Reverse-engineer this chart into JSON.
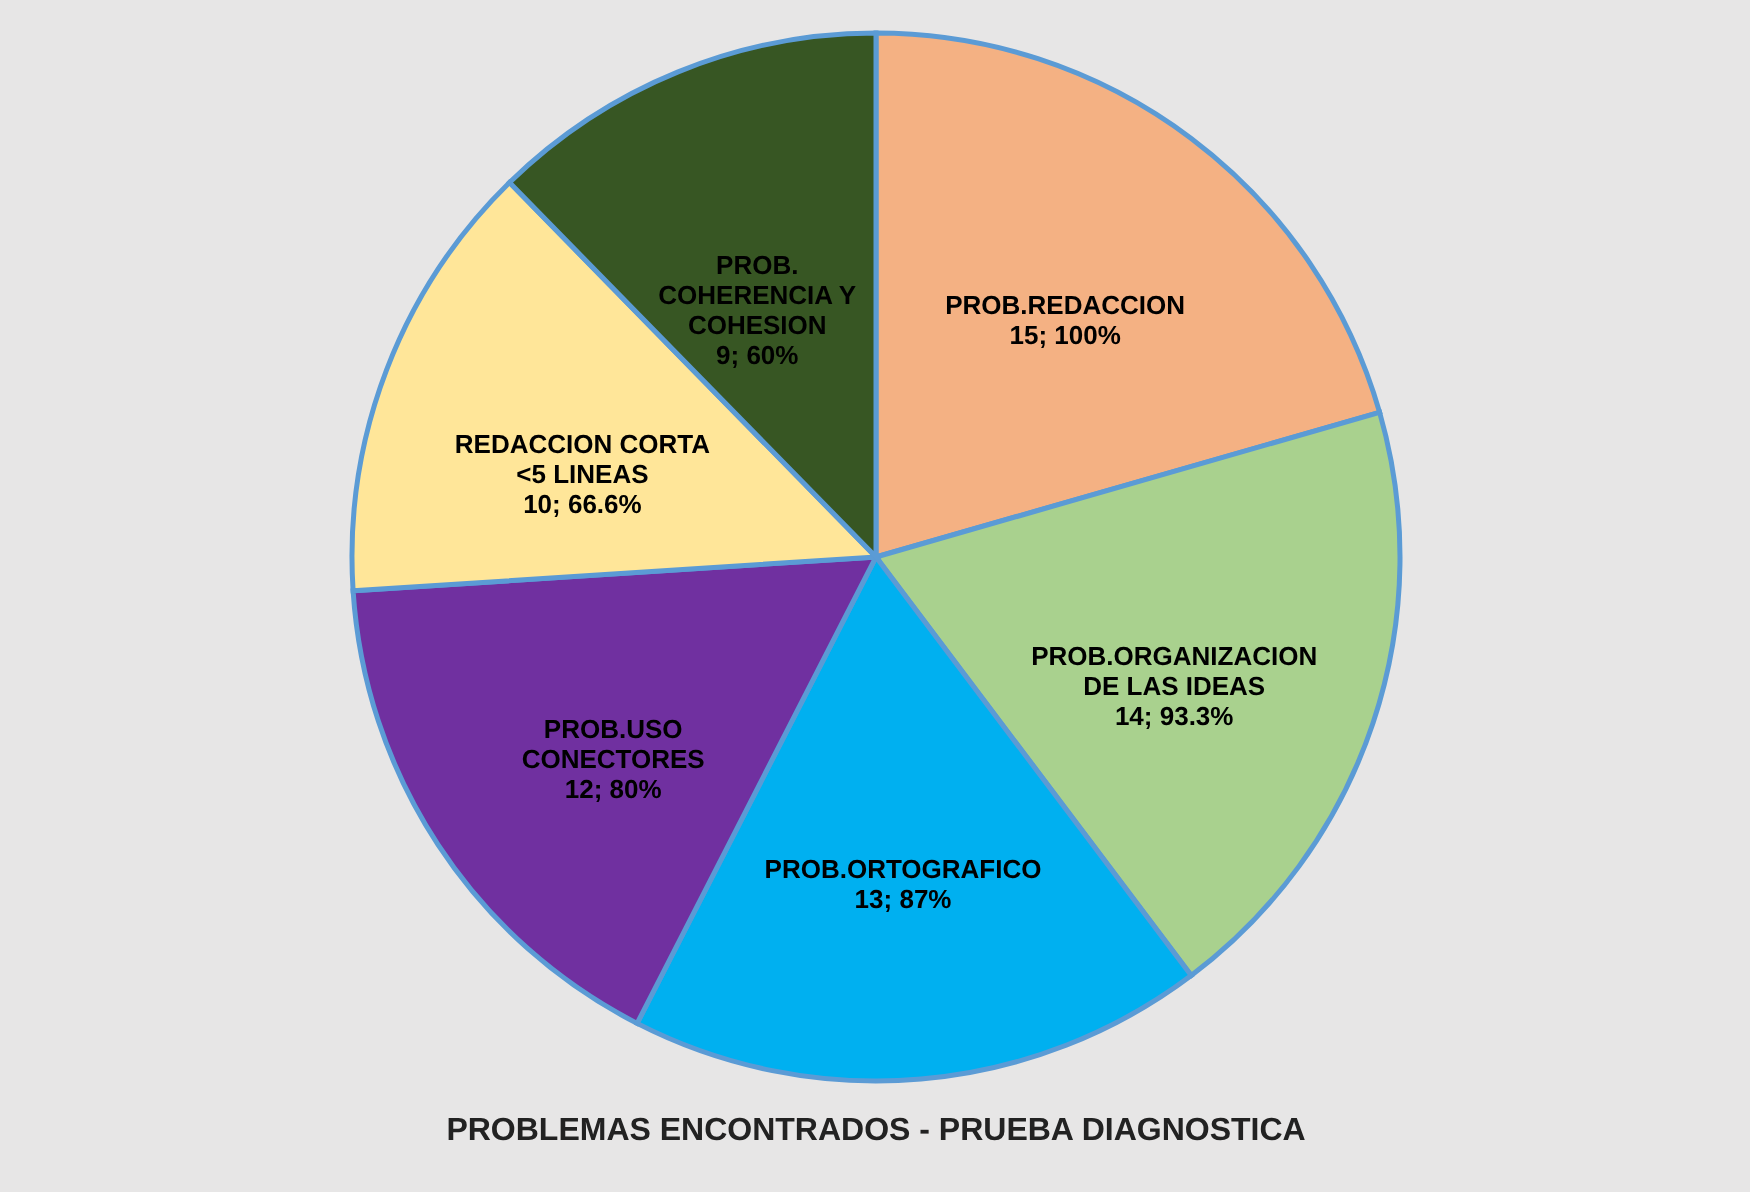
{
  "chart_data": {
    "type": "pie",
    "title": "PROBLEMAS  ENCONTRADOS - PRUEBA DIAGNOSTICA",
    "categories": [
      "PROB.REDACCION",
      "PROB.ORGANIZACION  DE LAS IDEAS",
      "PROB.ORTOGRAFICO",
      "PROB.USO CONECTORES",
      "REDACCION CORTA <5 LINEAS",
      "PROB. COHERENCIA Y COHESION"
    ],
    "values": [
      15,
      14,
      13,
      12,
      10,
      9
    ],
    "value_labels": [
      "15; 100%",
      "14; 93.3%",
      "13; 87%",
      "12; 80%",
      "10; 66.6%",
      "9; 60%"
    ],
    "colors": [
      "#f4b183",
      "#a9d18e",
      "#00b0f0",
      "#7030a0",
      "#ffe699",
      "#375623"
    ]
  }
}
